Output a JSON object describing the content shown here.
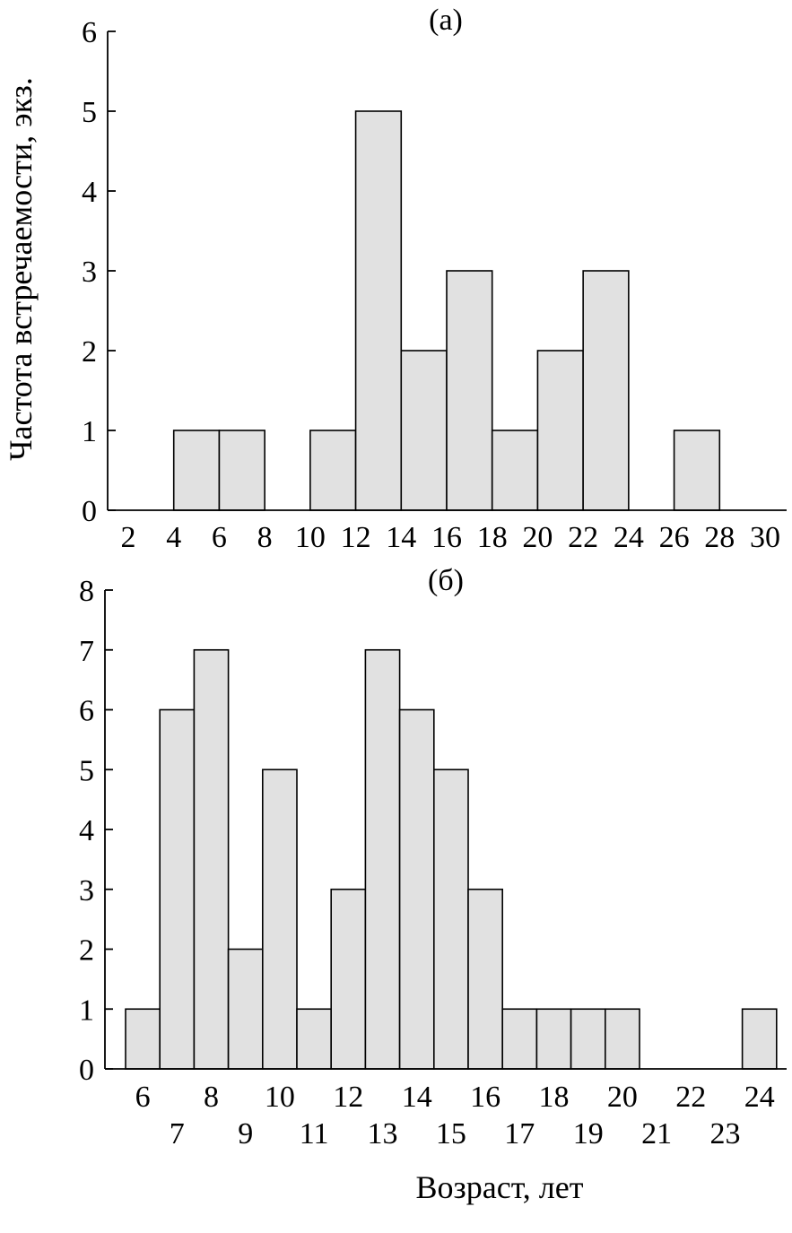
{
  "chart_data": [
    {
      "type": "bar",
      "title": "(а)",
      "bin_edges": [
        2,
        4,
        6,
        8,
        10,
        12,
        14,
        16,
        18,
        20,
        22,
        24,
        26,
        28,
        30
      ],
      "values": [
        0,
        1,
        1,
        0,
        1,
        5,
        2,
        3,
        1,
        2,
        3,
        0,
        1,
        0
      ],
      "xticks": [
        "2",
        "4",
        "6",
        "8",
        "10",
        "12",
        "14",
        "16",
        "18",
        "20",
        "22",
        "24",
        "26",
        "28",
        "30"
      ],
      "yticks": [
        "0",
        "1",
        "2",
        "3",
        "4",
        "5",
        "6"
      ],
      "ylim": [
        0,
        6
      ],
      "xlim": [
        2,
        30
      ],
      "ylabel": "Частота встречаемости, экз.",
      "xlabel": "",
      "grid": false
    },
    {
      "type": "bar",
      "title": "(б)",
      "categories": [
        "6",
        "7",
        "8",
        "9",
        "10",
        "11",
        "12",
        "13",
        "14",
        "15",
        "16",
        "17",
        "18",
        "19",
        "20",
        "21",
        "22",
        "23",
        "24"
      ],
      "values": [
        1,
        6,
        7,
        2,
        5,
        1,
        3,
        7,
        6,
        5,
        3,
        1,
        1,
        1,
        1,
        0,
        0,
        0,
        1
      ],
      "xticks_upper": [
        "6",
        "8",
        "10",
        "12",
        "14",
        "16",
        "18",
        "20",
        "22",
        "24"
      ],
      "xticks_lower": [
        "7",
        "9",
        "11",
        "13",
        "15",
        "17",
        "19",
        "21",
        "23"
      ],
      "yticks": [
        "0",
        "1",
        "2",
        "3",
        "4",
        "5",
        "6",
        "7",
        "8"
      ],
      "ylim": [
        0,
        8
      ],
      "xlabel": "Возраст, лет",
      "ylabel": "",
      "grid": false
    }
  ],
  "colors": {
    "bar_fill": "#e1e1e1",
    "bar_stroke": "#000000"
  }
}
